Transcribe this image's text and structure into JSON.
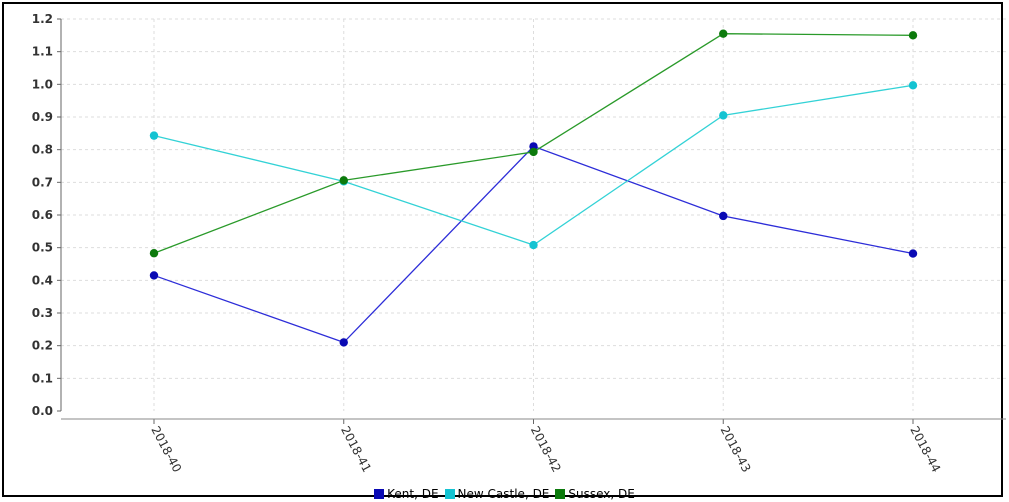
{
  "chart_data": {
    "type": "line",
    "categories": [
      "2018-40",
      "2018-41",
      "2018-42",
      "2018-43",
      "2018-44"
    ],
    "ylim": [
      0,
      1.2
    ],
    "yticks": [
      "0.0",
      "0.1",
      "0.2",
      "0.3",
      "0.4",
      "0.5",
      "0.6",
      "0.7",
      "0.8",
      "0.9",
      "1.0",
      "1.1",
      "1.2"
    ],
    "grid": true,
    "legend_position": "bottom",
    "series": [
      {
        "name": "Kent, DE",
        "color": "#2d2dd8",
        "marker_color": "#0a0ab4",
        "values": [
          0.415,
          0.21,
          0.81,
          0.597,
          0.482
        ]
      },
      {
        "name": "New Castle, DE",
        "color": "#33d2d6",
        "marker_color": "#14c3d2",
        "values": [
          0.843,
          0.703,
          0.508,
          0.905,
          0.997
        ]
      },
      {
        "name": "Sussex, DE",
        "color": "#2a9a2a",
        "marker_color": "#0c7a0c",
        "values": [
          0.483,
          0.706,
          0.793,
          1.155,
          1.15
        ]
      }
    ]
  }
}
